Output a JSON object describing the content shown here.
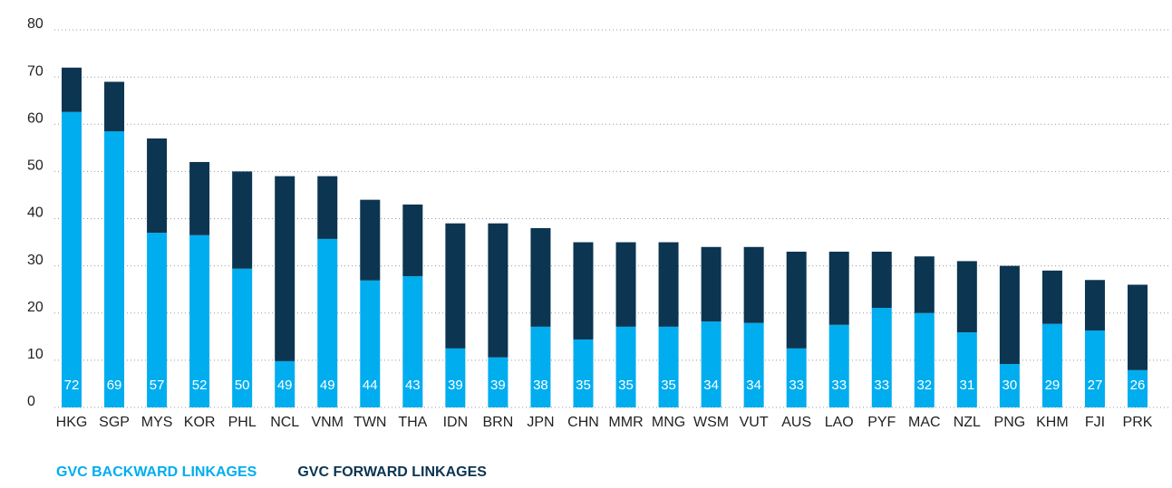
{
  "chart_data": {
    "type": "stacked_bar",
    "categories": [
      "HKG",
      "SGP",
      "MYS",
      "KOR",
      "PHL",
      "NCL",
      "VNM",
      "TWN",
      "THA",
      "IDN",
      "BRN",
      "JPN",
      "CHN",
      "MMR",
      "MNG",
      "WSM",
      "VUT",
      "AUS",
      "LAO",
      "PYF",
      "MAC",
      "NZL",
      "PNG",
      "KHM",
      "FJI",
      "PRK"
    ],
    "series": [
      {
        "name": "GVC BACKWARD LINKAGES",
        "color": "#00adef",
        "values": [
          62.6,
          58.5,
          37,
          36.5,
          29.4,
          9.8,
          35.7,
          26.9,
          27.8,
          12.5,
          10.6,
          17.1,
          14.4,
          17.1,
          17.1,
          18.2,
          17.9,
          12.5,
          17.5,
          21.1,
          20,
          15.9,
          9.2,
          17.7,
          16.3,
          7.9
        ]
      },
      {
        "name": "GVC FORWARD LINKAGES",
        "color": "#0b3551",
        "values": [
          9.4,
          10.5,
          20,
          15.5,
          20.6,
          39.2,
          13.3,
          17.1,
          15.2,
          26.5,
          28.4,
          20.9,
          20.6,
          17.9,
          17.9,
          15.8,
          16.1,
          20.5,
          15.5,
          11.9,
          12,
          15.1,
          20.8,
          11.3,
          10.7,
          18.1
        ]
      }
    ],
    "totals": [
      72,
      69,
      57,
      52,
      50,
      49,
      49,
      44,
      43,
      39,
      39,
      38,
      35,
      35,
      35,
      34,
      34,
      33,
      33,
      33,
      32,
      31,
      30,
      29,
      27,
      26
    ],
    "ylim": [
      0,
      80
    ],
    "yticks": [
      0,
      10,
      20,
      30,
      40,
      50,
      60,
      70,
      80
    ],
    "grid": true
  }
}
